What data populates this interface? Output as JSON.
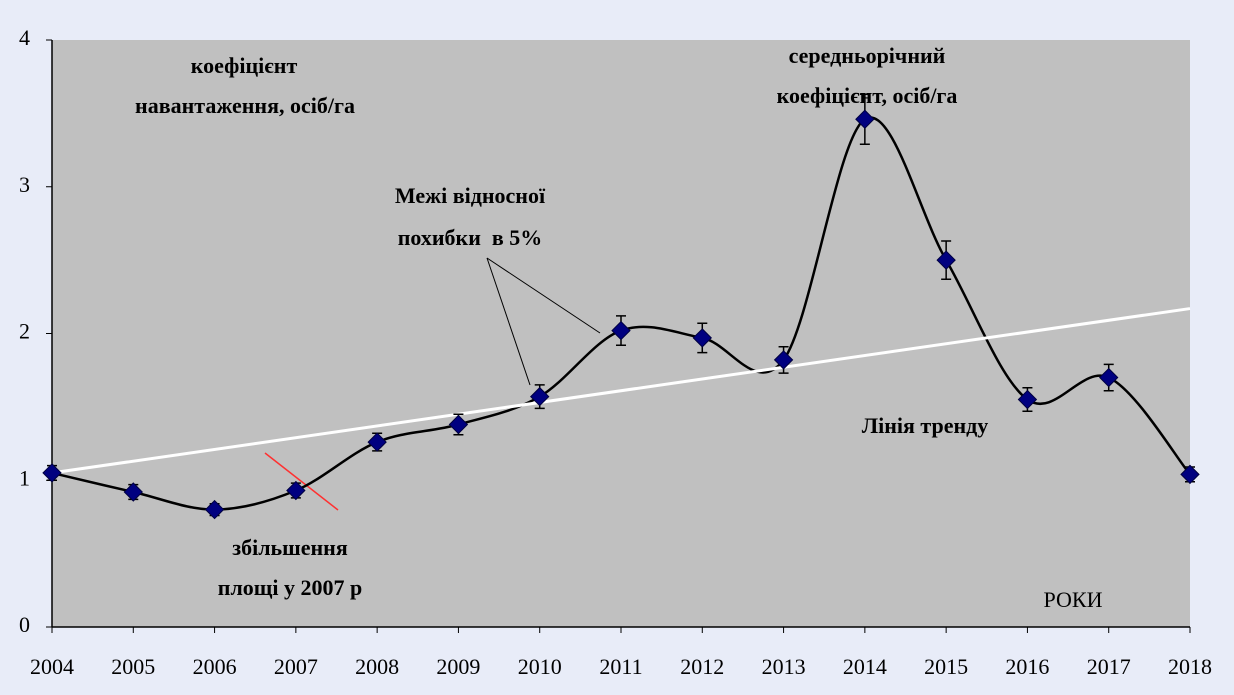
{
  "chart_data": {
    "type": "line",
    "x": [
      2004,
      2005,
      2006,
      2007,
      2008,
      2009,
      2010,
      2011,
      2012,
      2013,
      2014,
      2015,
      2016,
      2017,
      2018
    ],
    "series": [
      {
        "color": "#000080",
        "values": [
          1.05,
          0.92,
          0.8,
          0.93,
          1.26,
          1.38,
          1.57,
          2.02,
          1.97,
          1.82,
          3.46,
          2.5,
          1.55,
          1.7,
          1.04
        ],
        "errors": [
          0.05,
          0.05,
          0.04,
          0.05,
          0.06,
          0.07,
          0.08,
          0.1,
          0.1,
          0.09,
          0.17,
          0.13,
          0.08,
          0.09,
          0.05
        ]
      }
    ],
    "trend": {
      "color": "#ffffff",
      "x": [
        2004,
        2018
      ],
      "values": [
        1.05,
        2.17
      ]
    },
    "xlim": [
      2004,
      2018
    ],
    "xticks": [
      2004,
      2005,
      2006,
      2007,
      2008,
      2009,
      2010,
      2011,
      2012,
      2013,
      2014,
      2015,
      2016,
      2017,
      2018
    ],
    "ylim": [
      0,
      4
    ],
    "yticks": [
      0,
      1,
      2,
      3,
      4
    ],
    "annotations": [
      "коефіцієнт",
      "навантаження, осіб/га",
      "середньорічний",
      "коефіцієнт, осіб/га",
      "Межі відносної",
      "похибки  в 5%",
      "збільшення",
      "площі у 2007 р",
      "Лінія тренду",
      "РОКИ"
    ]
  }
}
